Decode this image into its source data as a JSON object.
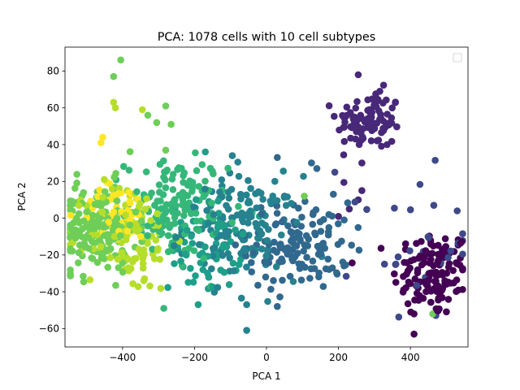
{
  "chart_data": {
    "type": "scatter",
    "title": "PCA: 1078 cells with 10 cell subtypes",
    "xlabel": "PCA 1",
    "ylabel": "PCA 2",
    "xlim": [
      -560,
      560
    ],
    "ylim": [
      -70,
      93
    ],
    "xticks": [
      -400,
      -200,
      0,
      200,
      400
    ],
    "yticks": [
      -60,
      -40,
      -20,
      0,
      20,
      40,
      60,
      80
    ],
    "grid": false,
    "legend": {
      "placement": "top-right",
      "entries": []
    },
    "colormap": "viridis",
    "point_color_hex": [
      "#440154",
      "#482878",
      "#3e4989",
      "#31688e",
      "#26828e",
      "#1f9e89",
      "#35b779",
      "#6ece58",
      "#b5de2b",
      "#fde725"
    ],
    "clusters": [
      {
        "subtype": 0,
        "center": [
          460,
          -30
        ],
        "spread": [
          55,
          12
        ],
        "count": 130
      },
      {
        "subtype": 1,
        "center": [
          285,
          53
        ],
        "spread": [
          45,
          8
        ],
        "count": 95
      },
      {
        "subtype": 2,
        "center": [
          420,
          -15
        ],
        "spread": [
          80,
          20
        ],
        "count": 25
      },
      {
        "subtype": 3,
        "center": [
          90,
          -15
        ],
        "spread": [
          70,
          12
        ],
        "count": 130
      },
      {
        "subtype": 4,
        "center": [
          -70,
          -5
        ],
        "spread": [
          80,
          14
        ],
        "count": 140
      },
      {
        "subtype": 5,
        "center": [
          -170,
          -15
        ],
        "spread": [
          50,
          12
        ],
        "count": 70
      },
      {
        "subtype": 6,
        "center": [
          -250,
          5
        ],
        "spread": [
          70,
          14
        ],
        "count": 150
      },
      {
        "subtype": 7,
        "center": [
          -470,
          -5
        ],
        "spread": [
          55,
          12
        ],
        "count": 180
      },
      {
        "subtype": 8,
        "center": [
          -380,
          -10
        ],
        "spread": [
          60,
          15
        ],
        "count": 110
      },
      {
        "subtype": 9,
        "center": [
          -410,
          3
        ],
        "spread": [
          55,
          8
        ],
        "count": 48
      }
    ],
    "notable_points": [
      {
        "x": -405,
        "y": 86,
        "subtype": 7
      },
      {
        "x": -425,
        "y": 77,
        "subtype": 7
      },
      {
        "x": -425,
        "y": 63,
        "subtype": 8
      },
      {
        "x": -420,
        "y": 60,
        "subtype": 8
      },
      {
        "x": -345,
        "y": 59,
        "subtype": 8
      },
      {
        "x": -280,
        "y": 61,
        "subtype": 7
      },
      {
        "x": -330,
        "y": 56,
        "subtype": 7
      },
      {
        "x": -305,
        "y": 52,
        "subtype": 7
      },
      {
        "x": -265,
        "y": 51,
        "subtype": 7
      },
      {
        "x": -455,
        "y": 44,
        "subtype": 9
      },
      {
        "x": -460,
        "y": 41,
        "subtype": 9
      },
      {
        "x": -280,
        "y": 37,
        "subtype": 7
      },
      {
        "x": -170,
        "y": 36,
        "subtype": 5
      },
      {
        "x": -95,
        "y": 34,
        "subtype": 4
      },
      {
        "x": 30,
        "y": 33,
        "subtype": 3
      },
      {
        "x": 255,
        "y": 78,
        "subtype": 1
      },
      {
        "x": 315,
        "y": 69,
        "subtype": 1
      },
      {
        "x": 335,
        "y": 40,
        "subtype": 1
      },
      {
        "x": 190,
        "y": 25,
        "subtype": 2
      },
      {
        "x": 265,
        "y": 30,
        "subtype": 1
      },
      {
        "x": 125,
        "y": 30,
        "subtype": 3
      },
      {
        "x": 140,
        "y": 27,
        "subtype": 3
      },
      {
        "x": 265,
        "y": 15,
        "subtype": 1
      },
      {
        "x": 255,
        "y": 10,
        "subtype": 1
      },
      {
        "x": 200,
        "y": 1,
        "subtype": 1
      },
      {
        "x": 230,
        "y": 5,
        "subtype": 1
      },
      {
        "x": 465,
        "y": 7,
        "subtype": 2
      },
      {
        "x": 530,
        "y": 4,
        "subtype": 2
      },
      {
        "x": 462,
        "y": -52,
        "subtype": 7
      },
      {
        "x": -55,
        "y": -47,
        "subtype": 4
      },
      {
        "x": 30,
        "y": -48,
        "subtype": 3
      },
      {
        "x": -190,
        "y": -47,
        "subtype": 5
      },
      {
        "x": -55,
        "y": -61,
        "subtype": 4
      },
      {
        "x": 410,
        "y": -63,
        "subtype": 0
      },
      {
        "x": 410,
        "y": -52,
        "subtype": 0
      },
      {
        "x": 50,
        "y": 12,
        "subtype": 3
      },
      {
        "x": 105,
        "y": 12,
        "subtype": 7
      },
      {
        "x": 130,
        "y": 3,
        "subtype": 3
      }
    ]
  }
}
